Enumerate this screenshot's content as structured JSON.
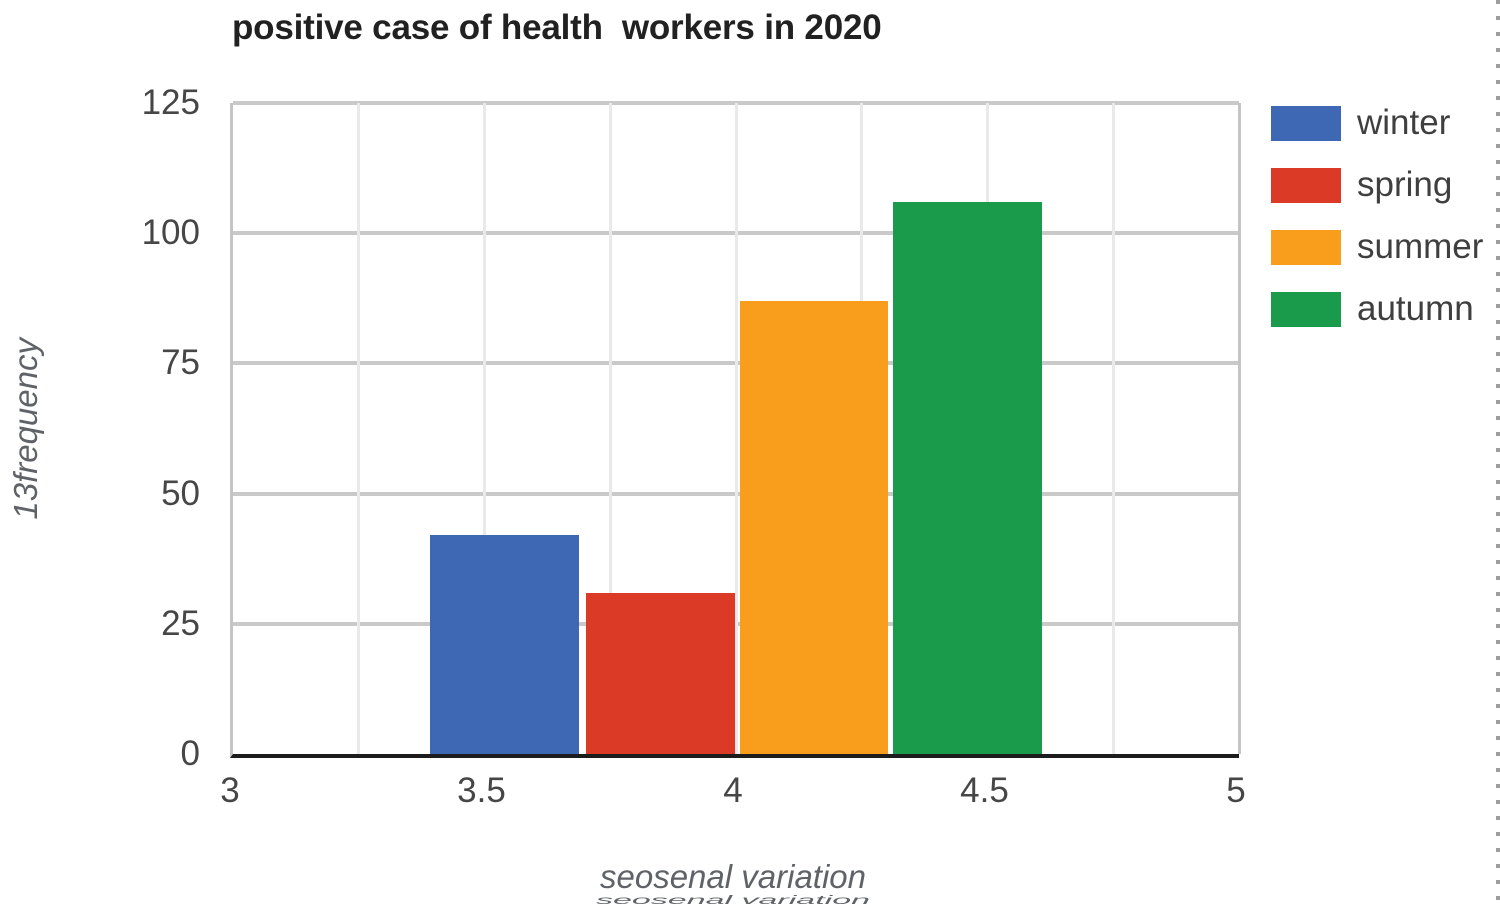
{
  "page": {
    "background": "#ffffff"
  },
  "chart_data": {
    "type": "bar",
    "title": "positive case of health  workers in 2020",
    "xlabel": "seosenal variation",
    "xlabel_artifact": "seosenal variation",
    "ylabel": "13frequency",
    "x_axis": {
      "min": 3,
      "max": 5,
      "tick_values": [
        3,
        3.5,
        4,
        4.5,
        5
      ],
      "tick_labels": [
        "3",
        "3.5",
        "4",
        "4.5",
        "5"
      ],
      "grid_step": 0.25
    },
    "y_axis": {
      "min": 0,
      "max": 125,
      "tick_values": [
        0,
        25,
        50,
        75,
        100,
        125
      ],
      "grid": true
    },
    "series": [
      {
        "name": "winter",
        "value": 42,
        "color": "#3E68B4",
        "x_center": 3.54
      },
      {
        "name": "spring",
        "value": 31,
        "color": "#DB3B26",
        "x_center": 3.85
      },
      {
        "name": "summer",
        "value": 87,
        "color": "#F89D1C",
        "x_center": 4.155
      },
      {
        "name": "autumn",
        "value": 106,
        "color": "#1A9A4B",
        "x_center": 4.46
      }
    ],
    "bar_width_units": 0.3,
    "legend": {
      "position": "right",
      "items": [
        "winter",
        "spring",
        "summer",
        "autumn"
      ]
    }
  },
  "colors": {
    "axis_line": "#1c1c1c",
    "grid_horizontal": "#c9c9c9",
    "grid_vertical": "#e9e9e9",
    "plot_border": "#c4c4c4",
    "title_text": "#212121",
    "tick_text": "#464646",
    "axis_label_text": "#5f6368",
    "legend_text": "#3f3f3f",
    "page_edge_dots": "#9e9e9e"
  }
}
